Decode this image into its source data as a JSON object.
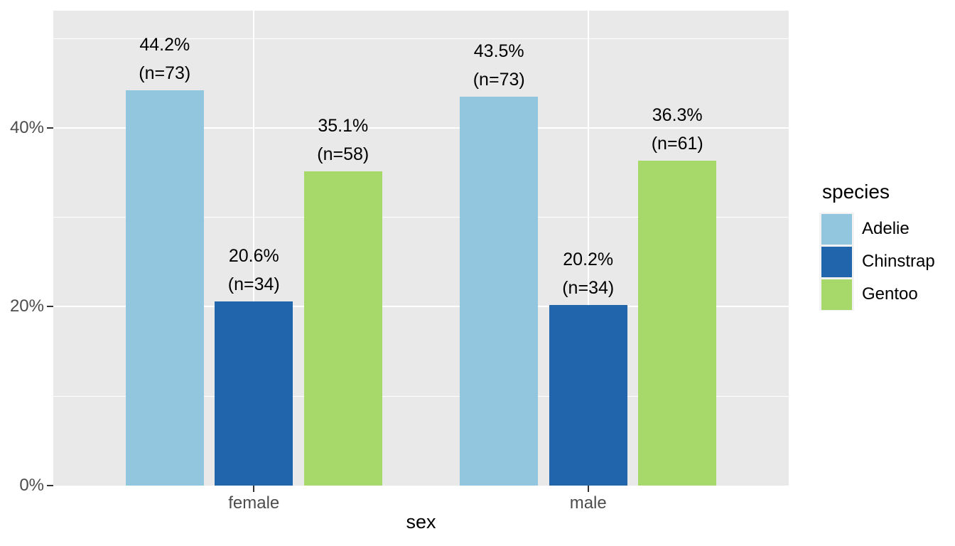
{
  "chart_data": {
    "type": "bar",
    "title": "",
    "xlabel": "sex",
    "ylabel": "",
    "categories": [
      "female",
      "male"
    ],
    "series": [
      {
        "name": "Adelie",
        "color": "#92C5DE",
        "values": [
          44.2,
          43.5
        ],
        "counts": [
          73,
          73
        ],
        "labels": [
          [
            "44.2%",
            "(n=73)"
          ],
          [
            "43.5%",
            "(n=73)"
          ]
        ]
      },
      {
        "name": "Chinstrap",
        "color": "#2166AC",
        "values": [
          20.6,
          20.2
        ],
        "counts": [
          34,
          34
        ],
        "labels": [
          [
            "20.6%",
            "(n=34)"
          ],
          [
            "20.2%",
            "(n=34)"
          ]
        ]
      },
      {
        "name": "Gentoo",
        "color": "#A6D96A",
        "values": [
          35.1,
          36.3
        ],
        "counts": [
          58,
          61
        ],
        "labels": [
          [
            "35.1%",
            "(n=58)"
          ],
          [
            "36.3%",
            "(n=61)"
          ]
        ]
      }
    ],
    "y_axis": {
      "tick_labels": [
        "0%",
        "20%",
        "40%"
      ],
      "tick_values": [
        0,
        20,
        40
      ],
      "minor_tick_values": [
        10,
        30,
        50
      ],
      "ylim": [
        0,
        53.1
      ]
    },
    "x_axis": {
      "tick_labels": [
        "female",
        "male"
      ]
    },
    "legend": {
      "title": "species",
      "position": "right",
      "entries": [
        "Adelie",
        "Chinstrap",
        "Gentoo"
      ]
    },
    "style": {
      "panel_background": "#E9E9E9",
      "grid_color": "#FFFFFF",
      "tick_label_color": "#4D4D4D",
      "axis_title_color": "#000000",
      "bar_label_color": "#000000",
      "legend_key_background": "#F2F2F2"
    }
  }
}
